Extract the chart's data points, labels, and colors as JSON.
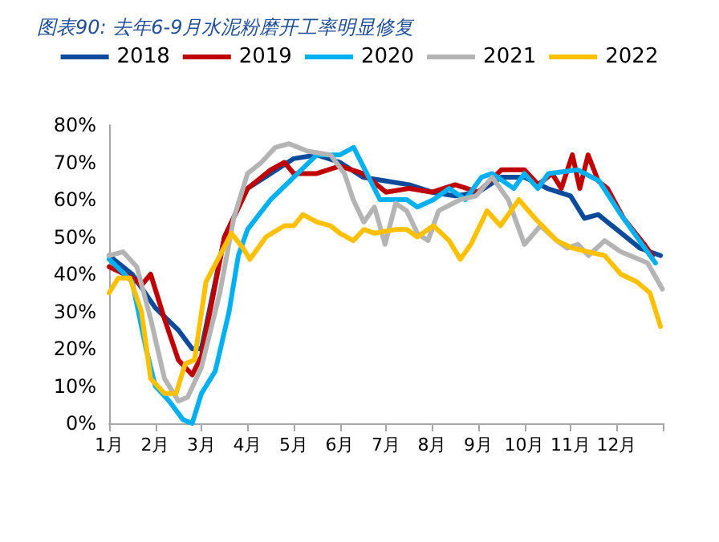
{
  "chart_data": {
    "type": "line",
    "title": "图表90: 去年6-9月水泥粉磨开工率明显修复",
    "xlim": [
      1,
      13
    ],
    "xticks": [
      {
        "value": 1,
        "label": "1月"
      },
      {
        "value": 2,
        "label": "2月"
      },
      {
        "value": 3,
        "label": "3月"
      },
      {
        "value": 4,
        "label": "4月"
      },
      {
        "value": 5,
        "label": "5月"
      },
      {
        "value": 6,
        "label": "6月"
      },
      {
        "value": 7,
        "label": "7月"
      },
      {
        "value": 8,
        "label": "8月"
      },
      {
        "value": 9,
        "label": "9月"
      },
      {
        "value": 10,
        "label": "10月"
      },
      {
        "value": 11,
        "label": "11月"
      },
      {
        "value": 12,
        "label": "12月"
      },
      {
        "value": 13,
        "label": null
      }
    ],
    "ylim": [
      0,
      80
    ],
    "yticks": [
      {
        "value": 0,
        "label": "0%"
      },
      {
        "value": 10,
        "label": "10%"
      },
      {
        "value": 20,
        "label": "20%"
      },
      {
        "value": 30,
        "label": "30%"
      },
      {
        "value": 40,
        "label": "40%"
      },
      {
        "value": 50,
        "label": "50%"
      },
      {
        "value": 60,
        "label": "60%"
      },
      {
        "value": 70,
        "label": "70%"
      },
      {
        "value": 80,
        "label": "80%"
      }
    ],
    "legend": "top",
    "series": [
      {
        "name": "2018",
        "color": "#0c4b9c",
        "x": [
          1,
          1.5,
          2,
          2.5,
          2.8,
          3,
          3.5,
          4,
          4.5,
          5,
          5.5,
          6,
          6.5,
          7,
          7.5,
          8,
          8.5,
          9,
          9.5,
          10,
          10.5,
          11,
          11.3,
          11.6,
          12,
          12.5,
          12.95
        ],
        "values": [
          45,
          40,
          31,
          25,
          20,
          20,
          50,
          63,
          67,
          71,
          72,
          70,
          66,
          65,
          64,
          62,
          61,
          62,
          66,
          66,
          63,
          61,
          55,
          56,
          52,
          47,
          45
        ]
      },
      {
        "name": "2019",
        "color": "#c00000",
        "x": [
          1,
          1.5,
          1.7,
          1.9,
          2.2,
          2.5,
          2.8,
          3,
          3.5,
          4,
          4.5,
          4.8,
          5,
          5.5,
          6,
          6.5,
          7,
          7.5,
          8,
          8.5,
          9,
          9.5,
          10,
          10.3,
          10.6,
          10.8,
          11.04,
          11.2,
          11.38,
          11.6,
          11.8,
          12.15,
          12.6,
          12.77
        ],
        "values": [
          42,
          39,
          37,
          40,
          28,
          17,
          13,
          18,
          50,
          63,
          68,
          70,
          67,
          67,
          69,
          67,
          62,
          63,
          62,
          64,
          62,
          68,
          68,
          64,
          67,
          63,
          72,
          63,
          72,
          65,
          63,
          55,
          48,
          45
        ]
      },
      {
        "name": "2020",
        "color": "#00b0f0",
        "x": [
          1,
          1.5,
          1.8,
          2,
          2.3,
          2.6,
          2.8,
          3,
          3.3,
          3.6,
          3.8,
          4,
          4.5,
          5,
          5.5,
          6,
          6.3,
          6.87,
          7.45,
          7.68,
          8.03,
          8.37,
          8.72,
          9.07,
          9.3,
          9.77,
          10.0,
          10.29,
          10.52,
          11.16,
          11.62,
          12.09,
          12.55,
          12.84
        ],
        "values": [
          44,
          38,
          20,
          10,
          6,
          1,
          0,
          8,
          14,
          30,
          45,
          52,
          60,
          66,
          72,
          72,
          74,
          60,
          60,
          58,
          60,
          63,
          60,
          66,
          67,
          63,
          67,
          63,
          67,
          68,
          65,
          56,
          48,
          43
        ]
      },
      {
        "name": "2021",
        "color": "#b4b4b4",
        "x": [
          1,
          1.3,
          1.6,
          1.9,
          2.2,
          2.5,
          2.7,
          3,
          3.4,
          3.7,
          4,
          4.3,
          4.6,
          4.9,
          5.3,
          5.8,
          6.1,
          6.29,
          6.52,
          6.75,
          6.98,
          7.21,
          7.45,
          7.68,
          7.91,
          8.14,
          8.61,
          8.95,
          9.3,
          9.65,
          10.0,
          10.35,
          10.7,
          10.93,
          11.16,
          11.39,
          11.74,
          12.09,
          12.67,
          12.99
        ],
        "values": [
          45,
          46,
          42,
          28,
          12,
          6,
          7,
          15,
          35,
          55,
          67,
          70,
          74,
          75,
          73,
          72,
          67,
          60,
          54,
          58,
          48,
          59,
          57,
          51,
          49,
          57,
          60,
          61,
          66,
          60,
          48,
          53,
          49,
          47,
          48,
          45,
          49,
          46,
          43,
          36
        ]
      },
      {
        "name": "2022",
        "color": "#ffc000",
        "x": [
          1,
          1.2,
          1.45,
          1.7,
          1.9,
          2.2,
          2.45,
          2.65,
          2.85,
          3.1,
          3.4,
          3.65,
          3.9,
          4.05,
          4.4,
          4.8,
          5.0,
          5.2,
          5.5,
          5.8,
          6.0,
          6.29,
          6.52,
          6.75,
          7.21,
          7.45,
          7.68,
          8.03,
          8.37,
          8.61,
          8.84,
          9.19,
          9.48,
          9.88,
          10.23,
          10.7,
          11.04,
          11.39,
          11.74,
          12.09,
          12.43,
          12.72,
          12.95
        ],
        "values": [
          35,
          39,
          39,
          30,
          12,
          8,
          8,
          16,
          17,
          38,
          45,
          51,
          47,
          44,
          50,
          53,
          53,
          56,
          54,
          53,
          51,
          49,
          52,
          51,
          52,
          52,
          50,
          53,
          49,
          44,
          48,
          57,
          53,
          60,
          55,
          49,
          47,
          46,
          45,
          40,
          38,
          35,
          26
        ]
      }
    ]
  }
}
